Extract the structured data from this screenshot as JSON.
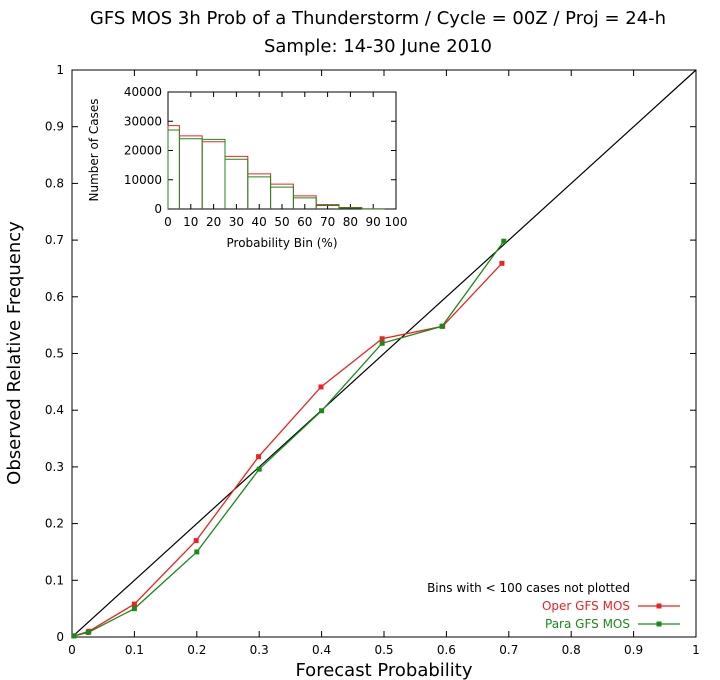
{
  "chart_data": [
    {
      "type": "line",
      "title": "GFS MOS 3h Prob of a Thunderstorm / Cycle = 00Z / Proj = 24-h",
      "subtitle": "Sample: 14-30 June 2010",
      "xlabel": "Forecast Probability",
      "ylabel": "Observed Relative Frequency",
      "xlim": [
        0,
        1
      ],
      "ylim": [
        0,
        1
      ],
      "xticks": [
        "0",
        "0.1",
        "0.2",
        "0.3",
        "0.4",
        "0.5",
        "0.6",
        "0.7",
        "0.8",
        "0.9",
        "1"
      ],
      "yticks": [
        "0",
        "0.1",
        "0.2",
        "0.3",
        "0.4",
        "0.5",
        "0.6",
        "0.7",
        "0.8",
        "0.9",
        "1"
      ],
      "grid": false,
      "legend_position": "bottom-right",
      "note": "Bins with < 100 cases not plotted",
      "reference_line": {
        "x": [
          0,
          1
        ],
        "y": [
          0,
          1
        ],
        "color": "#000000"
      },
      "series": [
        {
          "name": "Oper GFS MOS",
          "color": "#ee2222",
          "x": [
            0.003,
            0.027,
            0.1,
            0.199,
            0.299,
            0.399,
            0.497,
            0.594,
            0.689
          ],
          "y": [
            0.002,
            0.01,
            0.058,
            0.17,
            0.318,
            0.441,
            0.526,
            0.548,
            0.659
          ]
        },
        {
          "name": "Para GFS MOS",
          "color": "#1a8a1a",
          "x": [
            0.003,
            0.026,
            0.1,
            0.2,
            0.3,
            0.4,
            0.497,
            0.593,
            0.692
          ],
          "y": [
            0.002,
            0.008,
            0.05,
            0.15,
            0.296,
            0.399,
            0.518,
            0.548,
            0.698
          ]
        }
      ]
    },
    {
      "type": "bar",
      "xlabel": "Probability Bin (%)",
      "ylabel": "Number of Cases",
      "xlim": [
        0,
        100
      ],
      "ylim": [
        0,
        40000
      ],
      "xticks": [
        "0",
        "10",
        "20",
        "30",
        "40",
        "50",
        "60",
        "70",
        "80",
        "90",
        "100"
      ],
      "yticks": [
        "0",
        "10000",
        "20000",
        "30000",
        "40000"
      ],
      "bin_edges": [
        0,
        5,
        15,
        25,
        35,
        45,
        55,
        65,
        75,
        85,
        95
      ],
      "series": [
        {
          "name": "Oper GFS MOS",
          "color": "#ee2222",
          "values": [
            28500,
            25000,
            23000,
            18000,
            12000,
            8500,
            4500,
            1500,
            500,
            50
          ]
        },
        {
          "name": "Para GFS MOS",
          "color": "#1a8a1a",
          "values": [
            27000,
            24000,
            23800,
            17000,
            11000,
            7500,
            3800,
            1200,
            400,
            40
          ]
        }
      ]
    }
  ]
}
